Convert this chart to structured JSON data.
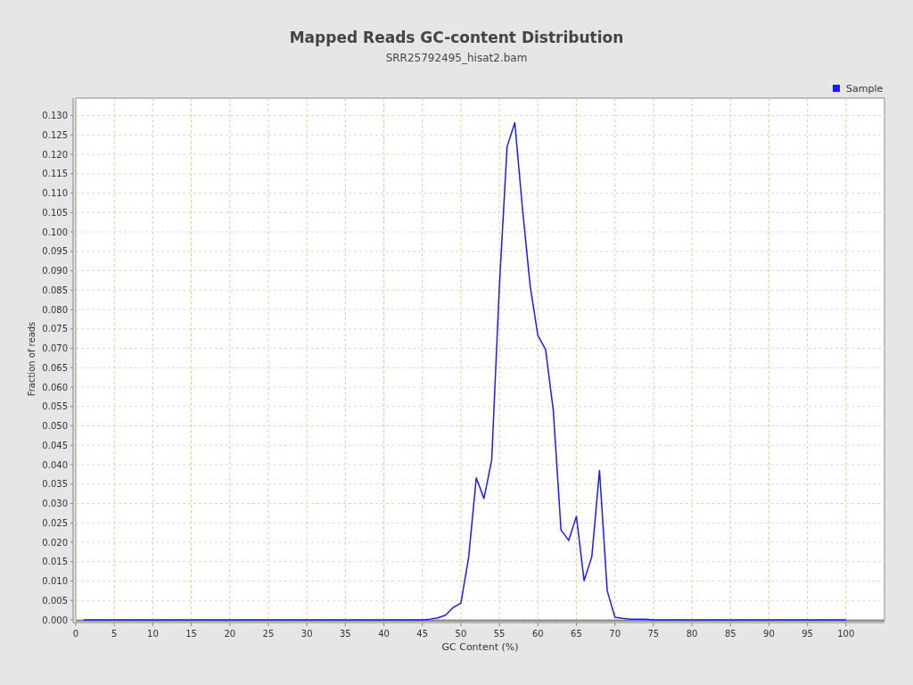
{
  "chart_data": {
    "type": "line",
    "title": "Mapped Reads GC-content Distribution",
    "subtitle": "SRR25792495_hisat2.bam",
    "xlabel": "GC Content (%)",
    "ylabel": "Fraction of reads",
    "x": [
      1,
      2,
      3,
      4,
      5,
      6,
      7,
      8,
      9,
      10,
      11,
      12,
      13,
      14,
      15,
      16,
      17,
      18,
      19,
      20,
      21,
      22,
      23,
      24,
      25,
      26,
      27,
      28,
      29,
      30,
      31,
      32,
      33,
      34,
      35,
      36,
      37,
      38,
      39,
      40,
      41,
      42,
      43,
      44,
      45,
      46,
      47,
      48,
      49,
      50,
      51,
      52,
      53,
      54,
      55,
      56,
      57,
      58,
      59,
      60,
      61,
      62,
      63,
      64,
      65,
      66,
      67,
      68,
      69,
      70,
      71,
      72,
      73,
      74,
      75,
      76,
      77,
      78,
      79,
      80,
      81,
      82,
      83,
      84,
      85,
      86,
      87,
      88,
      89,
      90,
      91,
      92,
      93,
      94,
      95,
      96,
      97,
      98,
      99,
      100
    ],
    "series": [
      {
        "name": "Sample",
        "color": "#1a1aff",
        "values": [
          0,
          0,
          0,
          0,
          0,
          0,
          0,
          0,
          0,
          0,
          0,
          0,
          0,
          0,
          0,
          0,
          0,
          0,
          0,
          0,
          0,
          0,
          0,
          0,
          0,
          0,
          0,
          0,
          0,
          0,
          0,
          0,
          0,
          0,
          0,
          0,
          0,
          0,
          0,
          0,
          0,
          0,
          0,
          0,
          0,
          0.0002,
          0.0005,
          0.0012,
          0.0032,
          0.0043,
          0.016,
          0.0366,
          0.0313,
          0.0412,
          0.086,
          0.122,
          0.1282,
          0.106,
          0.086,
          0.0733,
          0.0697,
          0.054,
          0.0232,
          0.0205,
          0.0267,
          0.0101,
          0.0163,
          0.0385,
          0.0075,
          0.0007,
          0.0004,
          0.0002,
          0.0002,
          0.0002,
          0,
          0,
          0,
          0,
          0,
          0,
          0,
          0,
          0,
          0,
          0,
          0,
          0,
          0,
          0,
          0,
          0,
          0,
          0,
          0,
          0,
          0,
          0,
          0,
          0,
          0
        ]
      }
    ],
    "xlim": [
      0,
      105
    ],
    "xticks": [
      0,
      5,
      10,
      15,
      20,
      25,
      30,
      35,
      40,
      45,
      50,
      55,
      60,
      65,
      70,
      75,
      80,
      85,
      90,
      95,
      100
    ],
    "ylim": [
      0,
      0.1345
    ],
    "yticks": [
      {
        "value": 0,
        "label": "0.000"
      },
      {
        "value": 0.005,
        "label": "0.005"
      },
      {
        "value": 0.01,
        "label": "0.010"
      },
      {
        "value": 0.015,
        "label": "0.015"
      },
      {
        "value": 0.02,
        "label": "0.020"
      },
      {
        "value": 0.025,
        "label": "0.025"
      },
      {
        "value": 0.03,
        "label": "0.030"
      },
      {
        "value": 0.035,
        "label": "0.035"
      },
      {
        "value": 0.04,
        "label": "0.040"
      },
      {
        "value": 0.045,
        "label": "0.045"
      },
      {
        "value": 0.05,
        "label": "0.050"
      },
      {
        "value": 0.055,
        "label": "0.055"
      },
      {
        "value": 0.06,
        "label": "0.060"
      },
      {
        "value": 0.065,
        "label": "0.065"
      },
      {
        "value": 0.07,
        "label": "0.070"
      },
      {
        "value": 0.075,
        "label": "0.075"
      },
      {
        "value": 0.08,
        "label": "0.080"
      },
      {
        "value": 0.085,
        "label": "0.085"
      },
      {
        "value": 0.09,
        "label": "0.090"
      },
      {
        "value": 0.095,
        "label": "0.095"
      },
      {
        "value": 0.1,
        "label": "0.100"
      },
      {
        "value": 0.105,
        "label": "0.105"
      },
      {
        "value": 0.11,
        "label": "0.110"
      },
      {
        "value": 0.115,
        "label": "0.115"
      },
      {
        "value": 0.12,
        "label": "0.120"
      },
      {
        "value": 0.125,
        "label": "0.125"
      },
      {
        "value": 0.13,
        "label": "0.130"
      }
    ],
    "grid": true,
    "legend": "top right",
    "marker": "none",
    "line_style": "solid"
  }
}
